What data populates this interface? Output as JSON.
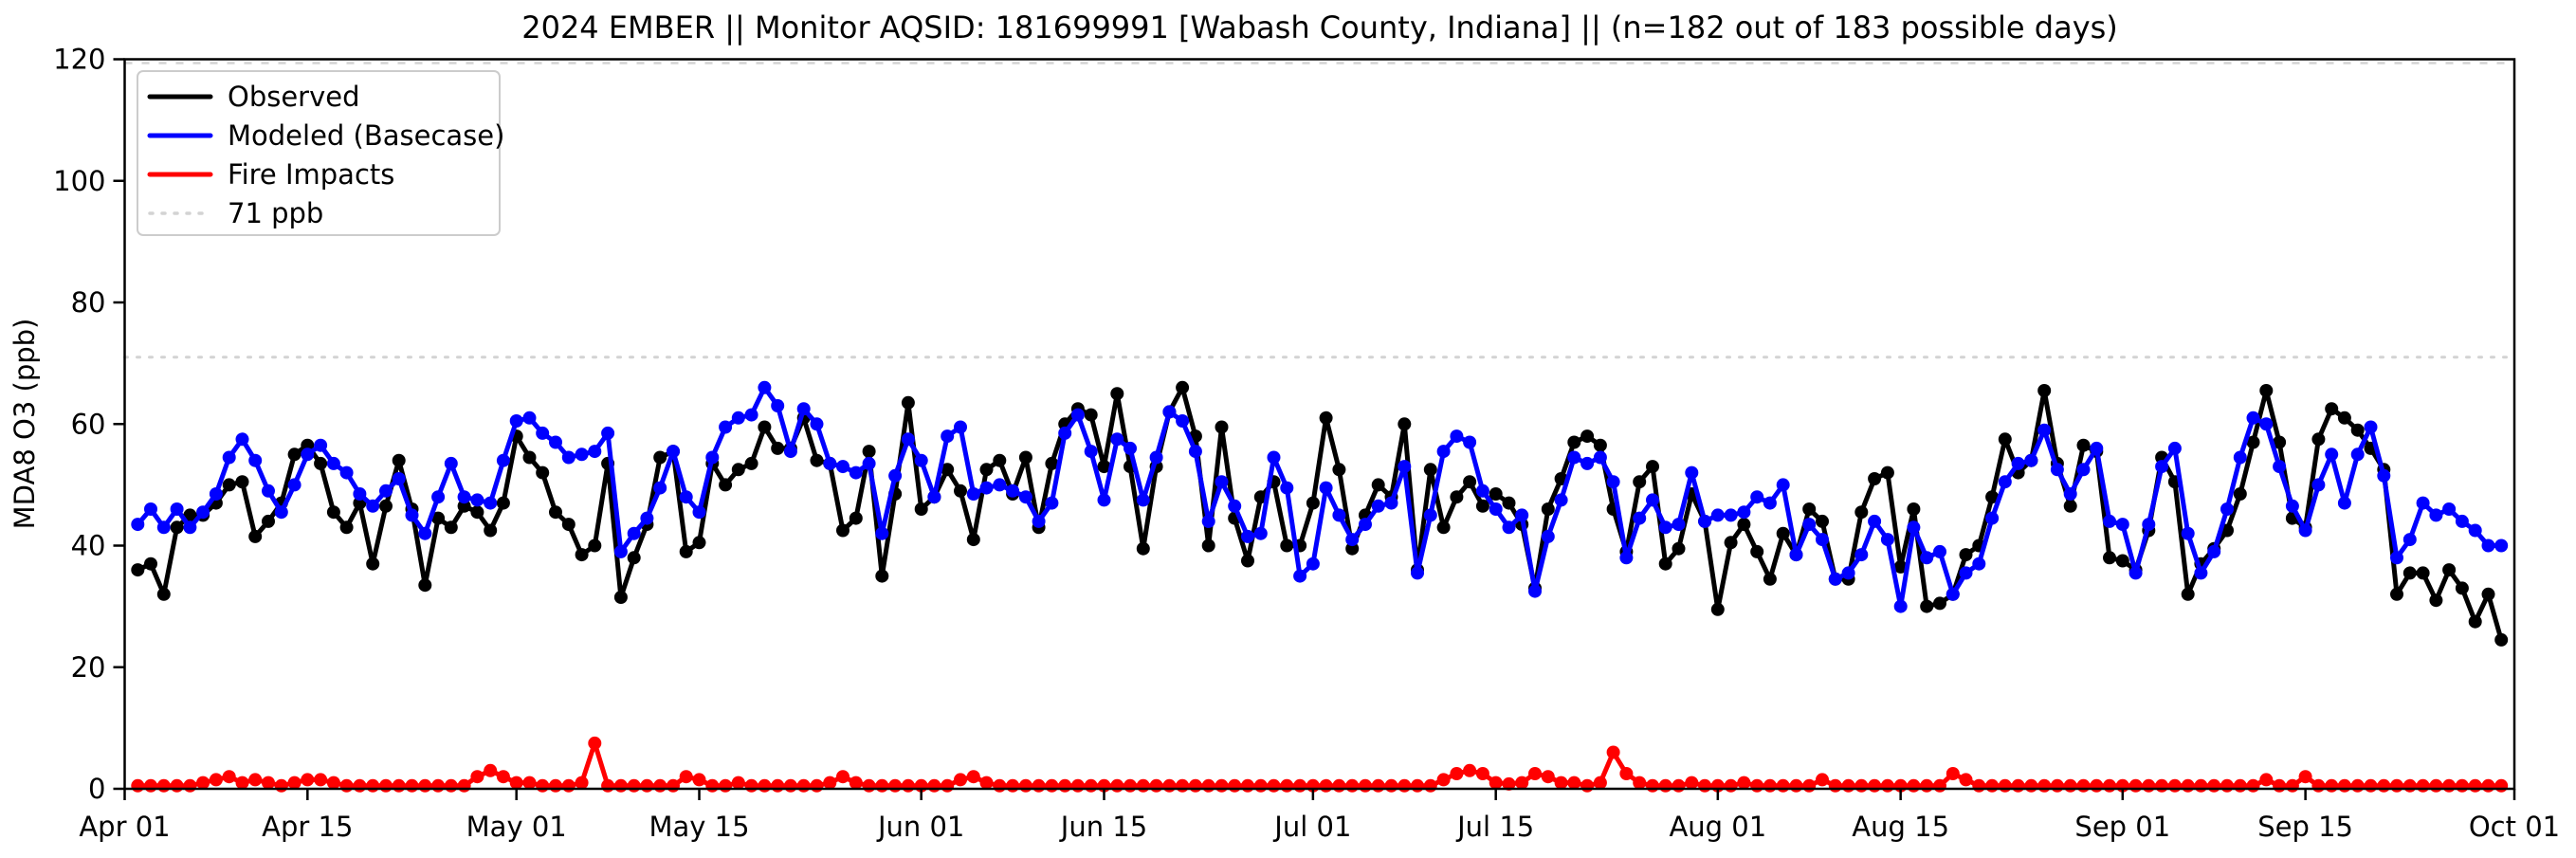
{
  "chart_data": {
    "type": "line",
    "title": "2024 EMBER || Monitor AQSID: 181699991 [Wabash County, Indiana] || (n=182 out of 183 possible days)",
    "ylabel": "MDA8 O3 (ppb)",
    "ylim": [
      0,
      120
    ],
    "y_ticks": [
      0,
      20,
      40,
      60,
      80,
      100,
      120
    ],
    "x_axis_range": [
      "Apr 01",
      "Oct 01"
    ],
    "x_tick_labels": [
      "Apr 01",
      "Apr 15",
      "May 01",
      "May 15",
      "Jun 01",
      "Jun 15",
      "Jul 01",
      "Jul 15",
      "Aug 01",
      "Aug 15",
      "Sep 01",
      "Sep 15",
      "Oct 01"
    ],
    "x_tick_day_index": [
      0,
      14,
      30,
      44,
      61,
      75,
      91,
      105,
      122,
      136,
      153,
      167,
      183
    ],
    "legend_position": "upper left",
    "grid": false,
    "threshold": {
      "label": "71 ppb",
      "value": 71,
      "color": "#d3d3d3",
      "style": "dotted"
    },
    "top_reference_line_value": 120,
    "colors": {
      "observed": "#000000",
      "modeled": "#0000ff",
      "fire": "#ff0000",
      "threshold": "#d3d3d3",
      "spine": "#000000"
    },
    "dates": [
      "Apr 02",
      "Apr 03",
      "Apr 04",
      "Apr 05",
      "Apr 06",
      "Apr 07",
      "Apr 08",
      "Apr 09",
      "Apr 10",
      "Apr 11",
      "Apr 12",
      "Apr 13",
      "Apr 14",
      "Apr 15",
      "Apr 16",
      "Apr 17",
      "Apr 18",
      "Apr 19",
      "Apr 20",
      "Apr 21",
      "Apr 22",
      "Apr 23",
      "Apr 24",
      "Apr 25",
      "Apr 26",
      "Apr 27",
      "Apr 28",
      "Apr 29",
      "Apr 30",
      "May 01",
      "May 02",
      "May 03",
      "May 04",
      "May 05",
      "May 06",
      "May 07",
      "May 08",
      "May 09",
      "May 10",
      "May 11",
      "May 12",
      "May 13",
      "May 14",
      "May 15",
      "May 16",
      "May 17",
      "May 18",
      "May 19",
      "May 20",
      "May 21",
      "May 22",
      "May 23",
      "May 24",
      "May 25",
      "May 26",
      "May 27",
      "May 28",
      "May 29",
      "May 30",
      "May 31",
      "Jun 01",
      "Jun 02",
      "Jun 03",
      "Jun 04",
      "Jun 05",
      "Jun 06",
      "Jun 07",
      "Jun 08",
      "Jun 09",
      "Jun 10",
      "Jun 11",
      "Jun 12",
      "Jun 13",
      "Jun 14",
      "Jun 15",
      "Jun 16",
      "Jun 17",
      "Jun 18",
      "Jun 19",
      "Jun 20",
      "Jun 21",
      "Jun 22",
      "Jun 23",
      "Jun 24",
      "Jun 25",
      "Jun 26",
      "Jun 27",
      "Jun 28",
      "Jun 29",
      "Jun 30",
      "Jul 01",
      "Jul 02",
      "Jul 03",
      "Jul 04",
      "Jul 05",
      "Jul 06",
      "Jul 07",
      "Jul 08",
      "Jul 09",
      "Jul 10",
      "Jul 11",
      "Jul 12",
      "Jul 13",
      "Jul 14",
      "Jul 15",
      "Jul 16",
      "Jul 17",
      "Jul 18",
      "Jul 19",
      "Jul 20",
      "Jul 21",
      "Jul 22",
      "Jul 23",
      "Jul 24",
      "Jul 25",
      "Jul 26",
      "Jul 27",
      "Jul 28",
      "Jul 29",
      "Jul 30",
      "Jul 31",
      "Aug 01",
      "Aug 02",
      "Aug 03",
      "Aug 04",
      "Aug 05",
      "Aug 06",
      "Aug 07",
      "Aug 08",
      "Aug 09",
      "Aug 10",
      "Aug 11",
      "Aug 12",
      "Aug 13",
      "Aug 14",
      "Aug 15",
      "Aug 16",
      "Aug 17",
      "Aug 18",
      "Aug 19",
      "Aug 20",
      "Aug 21",
      "Aug 22",
      "Aug 23",
      "Aug 24",
      "Aug 25",
      "Aug 26",
      "Aug 27",
      "Aug 28",
      "Aug 29",
      "Aug 30",
      "Aug 31",
      "Sep 01",
      "Sep 02",
      "Sep 03",
      "Sep 04",
      "Sep 05",
      "Sep 06",
      "Sep 07",
      "Sep 08",
      "Sep 09",
      "Sep 10",
      "Sep 11",
      "Sep 12",
      "Sep 13",
      "Sep 14",
      "Sep 15",
      "Sep 16",
      "Sep 17",
      "Sep 18",
      "Sep 19",
      "Sep 20",
      "Sep 21",
      "Sep 22",
      "Sep 23",
      "Sep 24",
      "Sep 25",
      "Sep 26",
      "Sep 27",
      "Sep 28",
      "Sep 29",
      "Sep 30"
    ],
    "start_day_offset_from_apr01": 1,
    "missing_day": "Apr 01",
    "series": [
      {
        "name": "Observed",
        "color": "#000000",
        "values": [
          36,
          37,
          32,
          43,
          45,
          45,
          47,
          50,
          50.5,
          41.5,
          44,
          47,
          55,
          56.5,
          53.5,
          45.5,
          43,
          47,
          37,
          46.5,
          54,
          46,
          33.5,
          44.5,
          43,
          46.5,
          45.5,
          42.5,
          47,
          58,
          54.5,
          52,
          45.5,
          43.5,
          38.5,
          40,
          53.5,
          31.5,
          38,
          43.5,
          54.5,
          55.5,
          39,
          40.5,
          53.5,
          50,
          52.5,
          53.5,
          59.5,
          56,
          56,
          61,
          54,
          53.5,
          42.5,
          44.5,
          55.5,
          35,
          48.5,
          63.5,
          46,
          48,
          52.5,
          49,
          41,
          52.5,
          54,
          48.5,
          54.5,
          43,
          53.5,
          60,
          62.5,
          61.5,
          53,
          65,
          53,
          39.5,
          53,
          62,
          66,
          58,
          40,
          59.5,
          44.5,
          37.5,
          48,
          50.5,
          40,
          40,
          47,
          61,
          52.5,
          39.5,
          45,
          50,
          48,
          60,
          36,
          52.5,
          43,
          48,
          50.5,
          46.5,
          48.5,
          47,
          43.5,
          33,
          46,
          51,
          57,
          58,
          56.5,
          46,
          39,
          50.5,
          53,
          37,
          39.5,
          48.5,
          44,
          29.5,
          40.5,
          43.5,
          39,
          34.5,
          42,
          38.5,
          46,
          44,
          34.5,
          34.5,
          45.5,
          51,
          52,
          36.5,
          46,
          30,
          30.5,
          32,
          38.5,
          40,
          48,
          57.5,
          52,
          54,
          65.5,
          53.5,
          46.5,
          56.5,
          55.5,
          38,
          37.5,
          36,
          42.5,
          54.5,
          50.5,
          32,
          37,
          39.5,
          42.5,
          48.5,
          57,
          65.5,
          57,
          44.5,
          43,
          57.5,
          62.5,
          61,
          59,
          56,
          52.5,
          32,
          35.5,
          35.5,
          31,
          36,
          33,
          27.5,
          32,
          24.5
        ]
      },
      {
        "name": "Modeled (Basecase)",
        "color": "#0000ff",
        "values": [
          43.5,
          46,
          43,
          46,
          43,
          45.5,
          48.5,
          54.5,
          57.5,
          54,
          49,
          45.5,
          50,
          55,
          56.5,
          53.5,
          52,
          48.5,
          46.5,
          49,
          51,
          45,
          42,
          48,
          53.5,
          48,
          47.5,
          47,
          54,
          60.5,
          61,
          58.5,
          57,
          54.5,
          55,
          55.5,
          58.5,
          39,
          42,
          44.5,
          49.5,
          55.5,
          48,
          45.5,
          54.5,
          59.5,
          61,
          61.5,
          66,
          63,
          55.5,
          62.5,
          60,
          53.5,
          53,
          52,
          53.5,
          42,
          51.5,
          57.5,
          54,
          48,
          58,
          59.5,
          48.5,
          49.5,
          50,
          49,
          48,
          44,
          47,
          58.5,
          61.5,
          55.5,
          47.5,
          57.5,
          56,
          47.5,
          54.5,
          62,
          60.5,
          55.5,
          44,
          50.5,
          46.5,
          41.5,
          42,
          54.5,
          49.5,
          35,
          37,
          49.5,
          45,
          41,
          43.5,
          46.5,
          47,
          53,
          35.5,
          45,
          55.5,
          58,
          57,
          49,
          46,
          43,
          45,
          32.5,
          41.5,
          47.5,
          54.5,
          53.5,
          54.5,
          50.5,
          38,
          44.5,
          47.5,
          43,
          43.5,
          52,
          44,
          45,
          45,
          45.5,
          48,
          47,
          50,
          38.5,
          43.5,
          41,
          34.5,
          35.5,
          38.5,
          44,
          41,
          30,
          43,
          38,
          39,
          32,
          35.5,
          37,
          44.5,
          50.5,
          53.5,
          54,
          59,
          52.5,
          48.5,
          52.5,
          56,
          44,
          43.5,
          35.5,
          43.5,
          53,
          56,
          42,
          35.5,
          39,
          46,
          54.5,
          61,
          60,
          53,
          46.5,
          42.5,
          50,
          55,
          47,
          55,
          59.5,
          51.5,
          38,
          41,
          47,
          45,
          46,
          44,
          42.5,
          40,
          40
        ]
      },
      {
        "name": "Fire Impacts",
        "color": "#ff0000",
        "values": [
          0.5,
          0.5,
          0.5,
          0.5,
          0.5,
          1,
          1.5,
          2,
          1,
          1.5,
          1,
          0.5,
          1,
          1.5,
          1.5,
          1,
          0.5,
          0.5,
          0.5,
          0.5,
          0.5,
          0.5,
          0.5,
          0.5,
          0.5,
          0.5,
          2,
          3,
          2,
          1,
          1,
          0.5,
          0.5,
          0.5,
          1,
          7.5,
          0.5,
          0.5,
          0.5,
          0.5,
          0.5,
          0.5,
          2,
          1.5,
          0.5,
          0.5,
          1,
          0.5,
          0.5,
          0.5,
          0.5,
          0.5,
          0.5,
          1,
          2,
          1,
          0.5,
          0.5,
          0.5,
          0.5,
          0.5,
          0.5,
          0.5,
          1.5,
          2,
          1,
          0.5,
          0.5,
          0.5,
          0.5,
          0.5,
          0.5,
          0.5,
          0.5,
          0.5,
          0.5,
          0.5,
          0.5,
          0.5,
          0.5,
          0.5,
          0.5,
          0.5,
          0.5,
          0.5,
          0.5,
          0.5,
          0.5,
          0.5,
          0.5,
          0.5,
          0.5,
          0.5,
          0.5,
          0.5,
          0.5,
          0.5,
          0.5,
          0.5,
          0.5,
          1.5,
          2.5,
          3,
          2.5,
          1,
          0.8,
          1,
          2.5,
          2,
          1,
          1,
          0.5,
          1,
          6,
          2.5,
          1,
          0.5,
          0.5,
          0.5,
          1,
          0.5,
          0.5,
          0.5,
          1,
          0.5,
          0.5,
          0.5,
          0.5,
          0.5,
          1.5,
          0.5,
          0.5,
          0.5,
          0.5,
          0.5,
          0.5,
          0.5,
          0.5,
          0.5,
          2.5,
          1.5,
          0.5,
          0.5,
          0.5,
          0.5,
          0.5,
          0.5,
          0.5,
          0.5,
          0.5,
          0.5,
          0.5,
          0.5,
          0.5,
          0.5,
          0.5,
          0.5,
          0.5,
          0.5,
          0.5,
          0.5,
          0.5,
          0.5,
          1.5,
          0.5,
          0.5,
          2,
          0.5,
          0.5,
          0.5,
          0.5,
          0.5,
          0.5,
          0.5,
          0.5,
          0.5,
          0.5,
          0.5,
          0.5,
          0.5,
          0.5,
          0.5
        ]
      }
    ]
  }
}
